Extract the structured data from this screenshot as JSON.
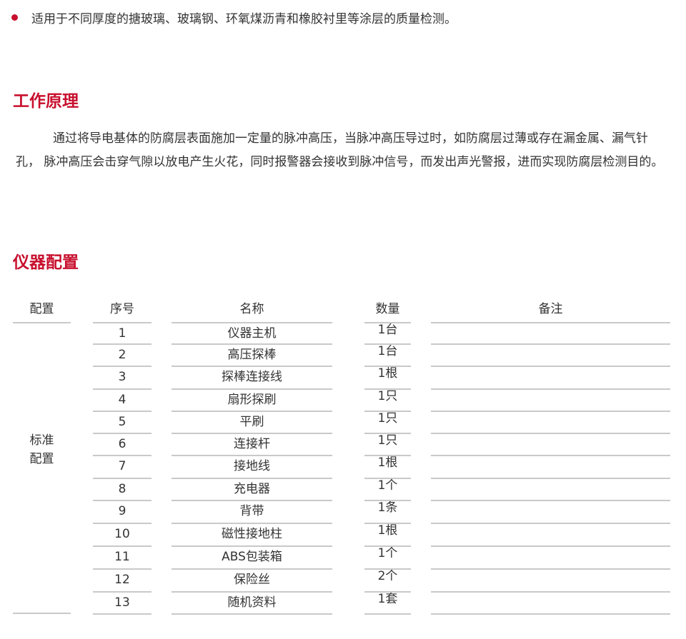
{
  "intro_bullet": "适用于不同厚度的搪玻璃、玻璃钢、环氧煤沥青和橡胶衬里等涂层的质量检测。",
  "principle": {
    "title": "工作原理",
    "text": "通过将导电基体的防腐层表面施加一定量的脉冲高压，当脉冲高压导过时，如防腐层过薄或存在漏金属、漏气针孔， 脉冲高压会击穿气隙以放电产生火花，同时报警器会接收到脉冲信号，而发出声光警报，进而实现防腐层检测目的。"
  },
  "config": {
    "title": "仪器配置",
    "headers": [
      "配置",
      "序号",
      "名称",
      "数量",
      "备注"
    ],
    "group_label": "标准\n配置",
    "rows": [
      {
        "no": "1",
        "name": "仪器主机",
        "qty": "1台",
        "note": ""
      },
      {
        "no": "2",
        "name": "高压探棒",
        "qty": "1台",
        "note": ""
      },
      {
        "no": "3",
        "name": "探棒连接线",
        "qty": "1根",
        "note": ""
      },
      {
        "no": "4",
        "name": "扇形探刷",
        "qty": "1只",
        "note": ""
      },
      {
        "no": "5",
        "name": "平刷",
        "qty": "1只",
        "note": ""
      },
      {
        "no": "6",
        "name": "连接杆",
        "qty": "1只",
        "note": ""
      },
      {
        "no": "7",
        "name": "接地线",
        "qty": "1根",
        "note": ""
      },
      {
        "no": "8",
        "name": "充电器",
        "qty": "1个",
        "note": ""
      },
      {
        "no": "9",
        "name": "背带",
        "qty": "1条",
        "note": ""
      },
      {
        "no": "10",
        "name": "磁性接地柱",
        "qty": "1根",
        "note": ""
      },
      {
        "no": "11",
        "name": "ABS包装箱",
        "qty": "1个",
        "note": ""
      },
      {
        "no": "12",
        "name": "保险丝",
        "qty": "2个",
        "note": ""
      },
      {
        "no": "13",
        "name": "随机资料",
        "qty": "1套",
        "note": ""
      }
    ]
  },
  "colors": {
    "accent": "#c8102e",
    "rule": "#c9c9c9"
  }
}
